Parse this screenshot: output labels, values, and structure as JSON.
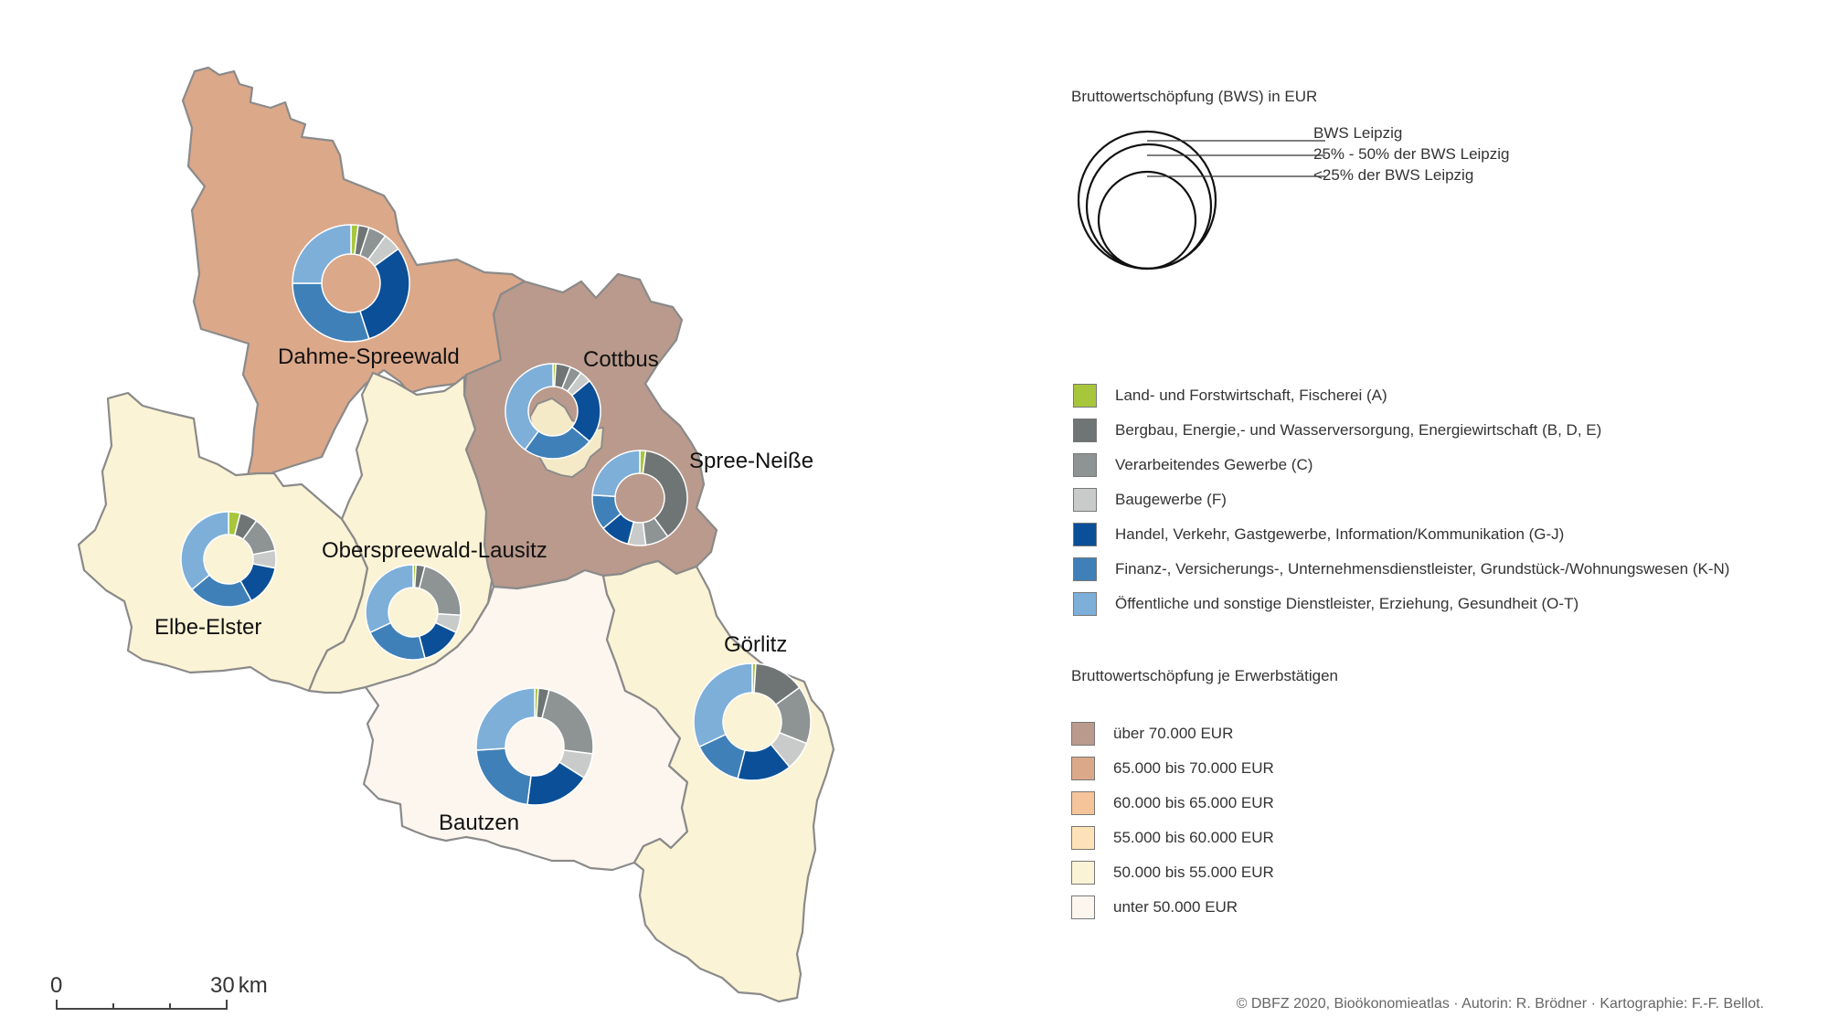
{
  "map": {
    "regions": [
      {
        "id": "dahme-spreewald",
        "name": "Dahme-Spreewald",
        "fill": "#dba88a"
      },
      {
        "id": "cottbus",
        "name": "Cottbus",
        "fill": "#f4eac8"
      },
      {
        "id": "spree-neisse",
        "name": "Spree-Neiße",
        "fill": "#b99a8c"
      },
      {
        "id": "elbe-elster",
        "name": "Elbe-Elster",
        "fill": "#fbf3d5"
      },
      {
        "id": "oberspreewald-lausitz",
        "name": "Oberspreewald-Lausitz",
        "fill": "#fbf3d5"
      },
      {
        "id": "bautzen",
        "name": "Bautzen",
        "fill": "#fdf6ef"
      },
      {
        "id": "goerlitz",
        "name": "Görlitz",
        "fill": "#fbf3d5"
      }
    ],
    "donuts": [
      {
        "region": "dahme-spreewald",
        "size": "large",
        "shares": [
          2,
          3,
          5,
          5,
          30,
          30,
          25
        ]
      },
      {
        "region": "cottbus",
        "size": "medium",
        "shares": [
          1,
          5,
          4,
          4,
          22,
          24,
          40
        ]
      },
      {
        "region": "spree-neisse",
        "size": "medium",
        "shares": [
          2,
          38,
          8,
          6,
          10,
          12,
          24
        ]
      },
      {
        "region": "elbe-elster",
        "size": "medium",
        "shares": [
          4,
          6,
          12,
          6,
          14,
          22,
          36
        ]
      },
      {
        "region": "oberspreewald-lausitz",
        "size": "medium",
        "shares": [
          1,
          3,
          22,
          6,
          14,
          22,
          32
        ]
      },
      {
        "region": "bautzen",
        "size": "large",
        "shares": [
          1,
          3,
          23,
          7,
          18,
          22,
          26
        ]
      },
      {
        "region": "goerlitz",
        "size": "large",
        "shares": [
          1,
          14,
          16,
          8,
          15,
          14,
          32
        ]
      }
    ]
  },
  "legend_bws": {
    "title": "Bruttowertschöpfung (BWS) in EUR",
    "items": [
      "BWS Leipzig",
      "25% - 50% der BWS Leipzig",
      "<25% der BWS Leipzig"
    ]
  },
  "legend_sectors": {
    "items": [
      {
        "label": "Land- und Forstwirtschaft, Fischerei (A)",
        "color": "#a8c63c"
      },
      {
        "label": "Bergbau, Energie,- und Wasserversorgung, Energiewirtschaft (B, D, E)",
        "color": "#6f7475"
      },
      {
        "label": "Verarbeitendes Gewerbe (C)",
        "color": "#8e9394"
      },
      {
        "label": "Baugewerbe (F)",
        "color": "#c9caca"
      },
      {
        "label": "Handel, Verkehr, Gastgewerbe, Information/Kommunikation (G-J)",
        "color": "#0a4f97"
      },
      {
        "label": "Finanz-, Versicherungs-, Unternehmensdienstleister, Grundstück-/Wohnungswesen (K-N)",
        "color": "#3f80b8"
      },
      {
        "label": "Öffentliche und sonstige Dienstleister, Erziehung, Gesundheit (O-T)",
        "color": "#7dafd9"
      }
    ]
  },
  "legend_per_worker": {
    "title": "Bruttowertschöpfung je Erwerbstätigen",
    "items": [
      {
        "label": "über 70.000 EUR",
        "color": "#b99a8c"
      },
      {
        "label": "65.000 bis 70.000 EUR",
        "color": "#dba88a"
      },
      {
        "label": "60.000 bis 65.000 EUR",
        "color": "#f5c49a"
      },
      {
        "label": "55.000 bis 60.000 EUR",
        "color": "#fde2b7"
      },
      {
        "label": "50.000 bis 55.000 EUR",
        "color": "#fbf3d5"
      },
      {
        "label": "unter 50.000 EUR",
        "color": "#fdf6ef"
      }
    ]
  },
  "scalebar": {
    "start": "0",
    "end": "30",
    "unit": "km"
  },
  "credit": "© DBFZ 2020, Bioökonomieatlas · Autorin: R. Brödner · Kartographie: F.-F. Bellot."
}
